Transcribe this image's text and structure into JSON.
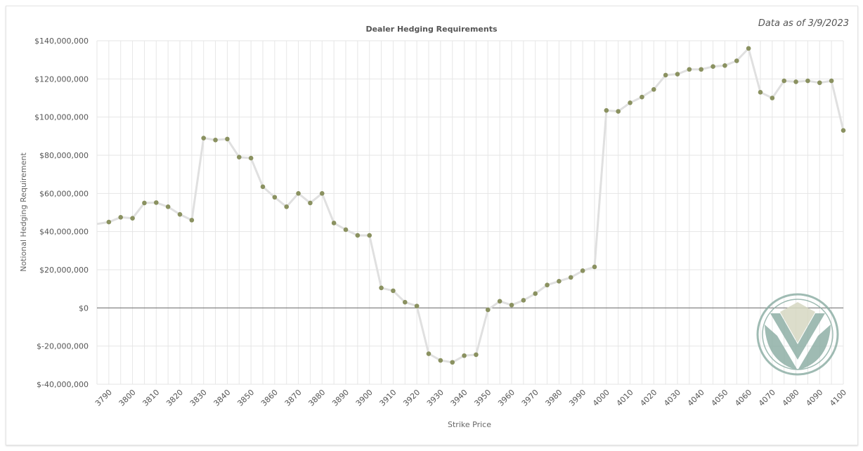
{
  "date_note": "Data as of 3/9/2023",
  "colors": {
    "line": "#e0e0e0",
    "marker": "#8a9160",
    "grid": "#e6e6e6",
    "zero_line": "#777777",
    "logo_dark": "#8fb0a6",
    "logo_light": "#d6d8c2"
  },
  "logo": {
    "icon": "v-shield-logo"
  },
  "chart_data": {
    "type": "line",
    "title": "Dealer Hedging Requirements",
    "xlabel": "Strike Price",
    "ylabel": "Notional Hedging Requirement",
    "ylim": [
      -40000000,
      140000000
    ],
    "xlim": [
      3785,
      4100
    ],
    "y_ticks": [
      140000000,
      120000000,
      100000000,
      80000000,
      60000000,
      40000000,
      20000000,
      0,
      -20000000,
      -40000000
    ],
    "y_tick_labels": [
      "$140,000,000",
      "$120,000,000",
      "$100,000,000",
      "$80,000,000",
      "$60,000,000",
      "$40,000,000",
      "$20,000,000",
      "$0",
      "$-20,000,000",
      "$-40,000,000"
    ],
    "x_tick_labels": [
      "3790",
      "3800",
      "3810",
      "3820",
      "3830",
      "3840",
      "3850",
      "3860",
      "3870",
      "3880",
      "3890",
      "3900",
      "3910",
      "3920",
      "3930",
      "3940",
      "3950",
      "3960",
      "3970",
      "3980",
      "3990",
      "4000",
      "4010",
      "4020",
      "4030",
      "4040",
      "4050",
      "4060",
      "4070",
      "4080",
      "4090",
      "4100"
    ],
    "grid": true,
    "series": [
      {
        "x": [
          3785,
          3790,
          3795,
          3800,
          3805,
          3810,
          3815,
          3820,
          3825,
          3830,
          3835,
          3840,
          3845,
          3850,
          3855,
          3860,
          3865,
          3870,
          3875,
          3880,
          3885,
          3890,
          3895,
          3900,
          3905,
          3910,
          3915,
          3920,
          3925,
          3930,
          3935,
          3940,
          3945,
          3950,
          3955,
          3960,
          3965,
          3970,
          3975,
          3980,
          3985,
          3990,
          3995,
          4000,
          4005,
          4010,
          4015,
          4020,
          4025,
          4030,
          4035,
          4040,
          4045,
          4050,
          4055,
          4060,
          4065,
          4070,
          4075,
          4080,
          4085,
          4090,
          4095,
          4100
        ],
        "values": [
          44000000,
          45000000,
          47500000,
          47000000,
          55000000,
          55200000,
          53000000,
          49000000,
          46000000,
          89000000,
          88000000,
          88500000,
          79000000,
          78500000,
          63500000,
          58000000,
          53000000,
          60000000,
          55000000,
          60000000,
          44500000,
          41000000,
          38000000,
          38000000,
          10500000,
          9000000,
          3000000,
          1000000,
          -24000000,
          -27500000,
          -28500000,
          -25000000,
          -24500000,
          -1000000,
          3500000,
          1500000,
          4000000,
          7500000,
          12000000,
          14000000,
          16000000,
          19500000,
          21500000,
          103500000,
          103000000,
          107500000,
          110500000,
          114500000,
          122000000,
          122500000,
          125000000,
          125000000,
          126500000,
          127000000,
          129500000,
          136000000,
          113000000,
          110000000,
          119000000,
          118500000,
          119000000,
          118000000,
          119000000,
          93000000
        ],
        "markers_from_index": 1
      }
    ]
  }
}
